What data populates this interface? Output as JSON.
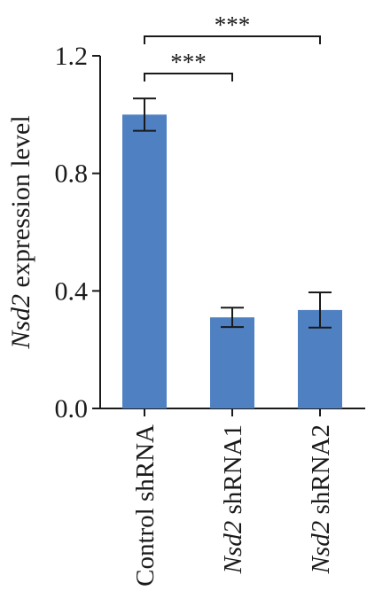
{
  "chart_data": {
    "type": "bar",
    "categories": [
      {
        "italic": "",
        "text": "Control shRNA"
      },
      {
        "italic": "Nsd2",
        "text": " shRNA1"
      },
      {
        "italic": "Nsd2",
        "text": " shRNA2"
      }
    ],
    "values": [
      1.0,
      0.31,
      0.335
    ],
    "errors": [
      0.055,
      0.033,
      0.06
    ],
    "ylabel": {
      "italic": "Nsd2",
      "text": " expression level"
    },
    "yticks": [
      "0.0",
      "0.4",
      "0.8",
      "1.2"
    ],
    "ylim": [
      0,
      1.2
    ],
    "bar_color": "#4f81c2",
    "axis_color": "#1a1a1a",
    "grid": false,
    "significance": [
      {
        "from": 0,
        "to": 1,
        "label": "***"
      },
      {
        "from": 0,
        "to": 2,
        "label": "***"
      }
    ]
  }
}
